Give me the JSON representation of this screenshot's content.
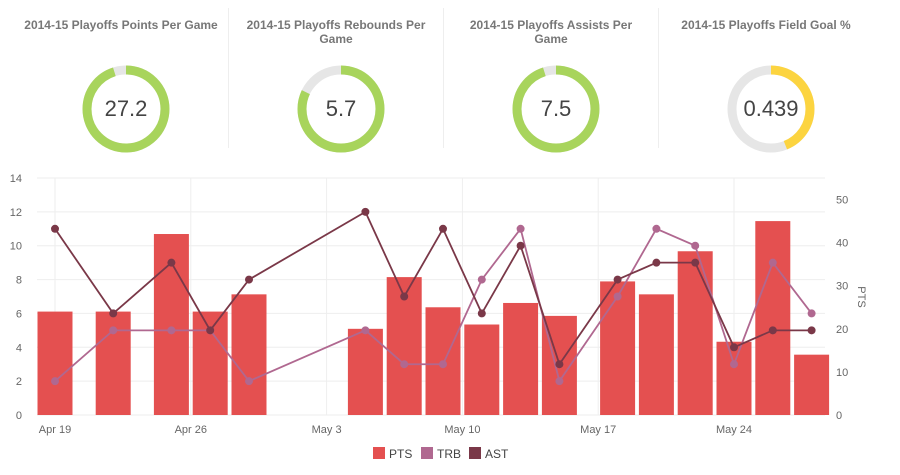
{
  "cards": [
    {
      "title": "2014-15 Playoffs Points Per Game",
      "value": "27.2",
      "fill": 0.95,
      "color": "#a8d45c"
    },
    {
      "title": "2014-15 Playoffs Rebounds Per Game",
      "value": "5.7",
      "fill": 0.82,
      "color": "#a8d45c"
    },
    {
      "title": "2014-15 Playoffs Assists Per Game",
      "value": "7.5",
      "fill": 0.95,
      "color": "#a8d45c"
    },
    {
      "title": "2014-15 Playoffs Field Goal %",
      "value": "0.439",
      "fill": 0.439,
      "color": "#fcd440"
    }
  ],
  "chart_data": {
    "type": "bar+line",
    "x": [
      "2015-04-19",
      "2015-04-22",
      "2015-04-25",
      "2015-04-27",
      "2015-04-29",
      "2015-05-05",
      "2015-05-07",
      "2015-05-09",
      "2015-05-11",
      "2015-05-13",
      "2015-05-15",
      "2015-05-18",
      "2015-05-20",
      "2015-05-22",
      "2015-05-24",
      "2015-05-26",
      "2015-05-28"
    ],
    "xticks": [
      {
        "date": "2015-04-19",
        "label": "Apr 19"
      },
      {
        "date": "2015-04-26",
        "label": "Apr 26"
      },
      {
        "date": "2015-05-03",
        "label": "May 3"
      },
      {
        "date": "2015-05-10",
        "label": "May 10"
      },
      {
        "date": "2015-05-17",
        "label": "May 17"
      },
      {
        "date": "2015-05-24",
        "label": "May 24"
      }
    ],
    "series": [
      {
        "name": "PTS",
        "type": "bar",
        "axis": "right",
        "color": "#e45050",
        "values": [
          24,
          24,
          42,
          24,
          28,
          20,
          32,
          25,
          21,
          26,
          23,
          31,
          28,
          38,
          17,
          45,
          14
        ]
      },
      {
        "name": "TRB",
        "type": "line",
        "axis": "left",
        "color": "#b06890",
        "values": [
          2,
          5,
          5,
          5,
          2,
          5,
          3,
          3,
          8,
          11,
          2,
          7,
          11,
          10,
          3,
          9,
          6
        ]
      },
      {
        "name": "AST",
        "type": "line",
        "axis": "left",
        "color": "#7a3848",
        "values": [
          11,
          6,
          9,
          5,
          8,
          12,
          7,
          11,
          6,
          10,
          3,
          8,
          9,
          9,
          4,
          5,
          5
        ]
      }
    ],
    "ylim_left": [
      0,
      14
    ],
    "yticks_left": [
      0,
      2,
      4,
      6,
      8,
      10,
      12,
      14
    ],
    "ylim_right": [
      0,
      55
    ],
    "yticks_right": [
      0,
      10,
      20,
      30,
      40,
      50
    ],
    "ylabel_right": "PTS",
    "legend": "bottom-center",
    "grid": true
  }
}
